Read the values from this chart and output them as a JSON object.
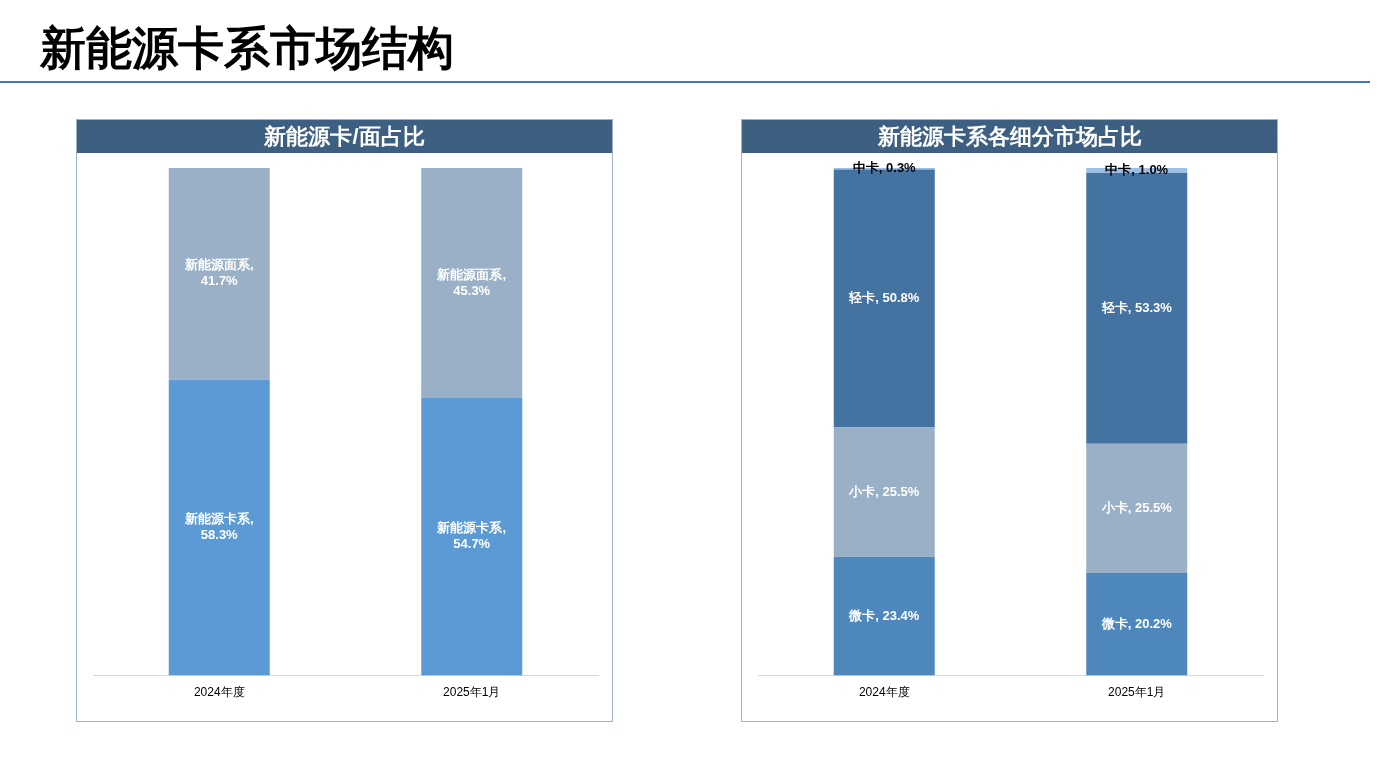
{
  "chart_data": [
    {
      "type": "other",
      "title": "新能源卡系市场结构"
    },
    {
      "type": "bar",
      "title": "新能源卡/面占比",
      "categories": [
        "2024年度",
        "2025年1月"
      ],
      "stacked": true,
      "ylim": [
        0,
        100
      ],
      "tick_labels": "x",
      "series": [
        {
          "color": "#5b9ad5",
          "values": [
            58.3,
            54.7
          ],
          "value_labels": [
            "新能源卡系, 58.3%",
            "新能源卡系, 54.7%"
          ]
        },
        {
          "color": "#9ab0c6",
          "values": [
            41.7,
            45.3
          ],
          "value_labels": [
            "新能源面系, 41.7%",
            "新能源面系, 45.3%"
          ]
        }
      ]
    },
    {
      "type": "bar",
      "title": "新能源卡系各细分市场占比",
      "categories": [
        "2024年度",
        "2025年1月"
      ],
      "stacked": true,
      "ylim": [
        0,
        100
      ],
      "tick_labels": "x",
      "series": [
        {
          "color": "#4e87bc",
          "values": [
            23.4,
            20.2
          ],
          "value_labels": [
            "微卡, 23.4%",
            "微卡, 20.2%"
          ]
        },
        {
          "color": "#9ab0c6",
          "values": [
            25.5,
            25.5
          ],
          "value_labels": [
            "小卡, 25.5%",
            "小卡, 25.5%"
          ]
        },
        {
          "color": "#4472a1",
          "values": [
            50.8,
            53.3
          ],
          "value_labels": [
            "轻卡, 50.8%",
            "轻卡, 53.3%"
          ]
        },
        {
          "color": "#9dbfe6",
          "values": [
            0.3,
            1.0
          ],
          "value_labels": [
            "中卡, 0.3%",
            "中卡, 1.0%"
          ]
        }
      ]
    }
  ]
}
